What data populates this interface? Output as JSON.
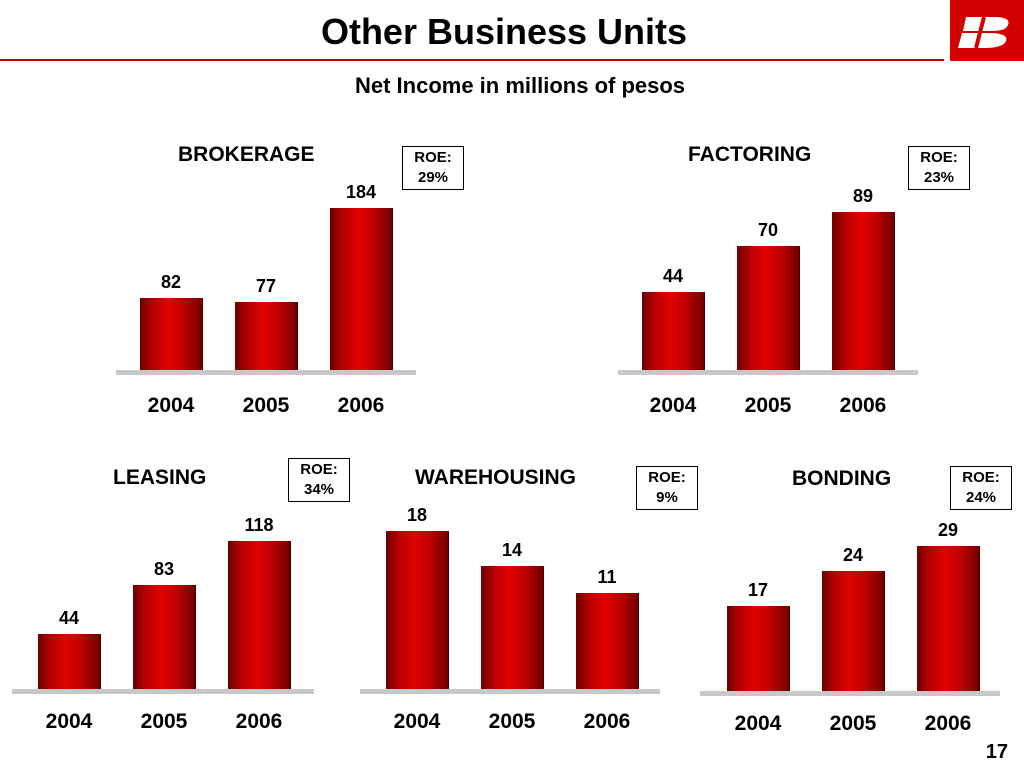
{
  "title": "Other Business Units",
  "subtitle": "Net Income in millions of pesos",
  "page_number": "17",
  "logo": {
    "icon": "bank-logo-icon",
    "color": "#d40000"
  },
  "colors": {
    "bar": "#c00000",
    "accent": "#d40000",
    "baseline": "#c8c8c8"
  },
  "chart_data": [
    {
      "type": "bar",
      "title": "BROKERAGE",
      "roe": {
        "label": "ROE:",
        "value": "29%"
      },
      "categories": [
        "2004",
        "2005",
        "2006"
      ],
      "values": [
        82,
        77,
        184
      ]
    },
    {
      "type": "bar",
      "title": "FACTORING",
      "roe": {
        "label": "ROE:",
        "value": "23%"
      },
      "categories": [
        "2004",
        "2005",
        "2006"
      ],
      "values": [
        44,
        70,
        89
      ]
    },
    {
      "type": "bar",
      "title": "LEASING",
      "roe": {
        "label": "ROE:",
        "value": "34%"
      },
      "categories": [
        "2004",
        "2005",
        "2006"
      ],
      "values": [
        44,
        83,
        118
      ]
    },
    {
      "type": "bar",
      "title": "WAREHOUSING",
      "roe": {
        "label": "ROE:",
        "value": "9%"
      },
      "categories": [
        "2004",
        "2005",
        "2006"
      ],
      "values": [
        18,
        14,
        11
      ]
    },
    {
      "type": "bar",
      "title": "BONDING",
      "roe": {
        "label": "ROE:",
        "value": "24%"
      },
      "categories": [
        "2004",
        "2005",
        "2006"
      ],
      "values": [
        17,
        24,
        29
      ]
    }
  ]
}
